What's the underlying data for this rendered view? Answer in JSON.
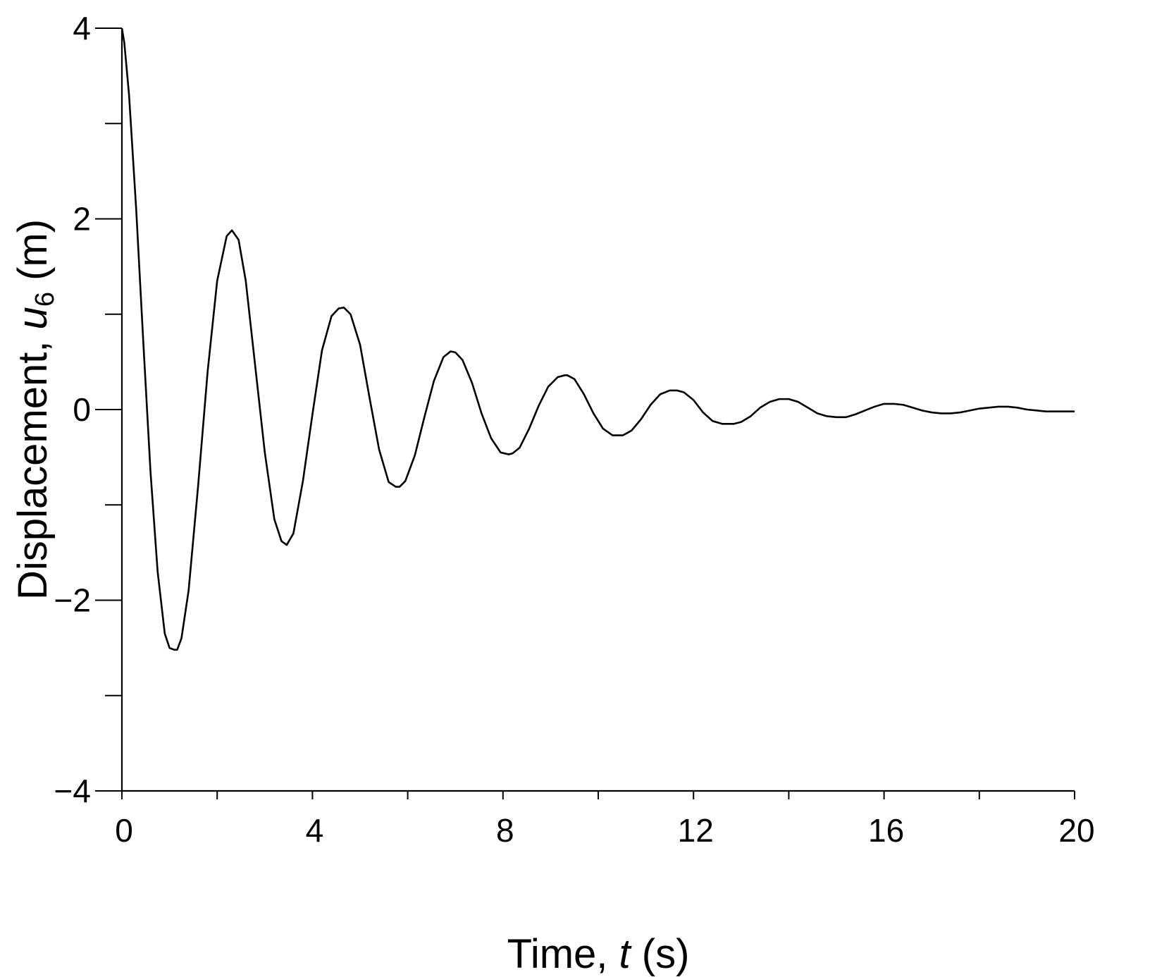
{
  "chart_data": {
    "type": "line",
    "title": "",
    "xlabel": {
      "prefix": "Time, ",
      "var": "t",
      "suffix": " (s)"
    },
    "ylabel": {
      "prefix": "Displacement, ",
      "var": "u",
      "sub": "6",
      "suffix": " (m)"
    },
    "xlim": [
      0,
      20
    ],
    "ylim": [
      -4,
      4
    ],
    "xticks": [
      0,
      4,
      8,
      12,
      16,
      20
    ],
    "xticks_minor": [
      2,
      6,
      10,
      14,
      18
    ],
    "x_tick_labels": [
      "0",
      "4",
      "8",
      "12",
      "16",
      "20"
    ],
    "yticks": [
      -4,
      -2,
      0,
      2,
      4
    ],
    "yticks_minor": [
      -3,
      -1,
      1,
      3
    ],
    "y_tick_labels": [
      "−4",
      "−2",
      "0",
      "2",
      "4"
    ],
    "grid": false,
    "series": [
      {
        "color": "#000000",
        "x": [
          0,
          0.05,
          0.15,
          0.3,
          0.45,
          0.6,
          0.75,
          0.9,
          1.0,
          1.1,
          1.16,
          1.25,
          1.4,
          1.6,
          1.8,
          2.0,
          2.2,
          2.31,
          2.45,
          2.6,
          2.8,
          3.0,
          3.2,
          3.35,
          3.46,
          3.6,
          3.8,
          4.0,
          4.2,
          4.4,
          4.55,
          4.66,
          4.8,
          5.0,
          5.2,
          5.4,
          5.6,
          5.75,
          5.83,
          5.95,
          6.15,
          6.35,
          6.55,
          6.75,
          6.9,
          7.0,
          7.15,
          7.35,
          7.55,
          7.75,
          7.95,
          8.12,
          8.2,
          8.35,
          8.55,
          8.75,
          8.95,
          9.15,
          9.3,
          9.35,
          9.5,
          9.7,
          9.9,
          10.1,
          10.3,
          10.45,
          10.52,
          10.7,
          10.9,
          11.1,
          11.3,
          11.5,
          11.66,
          11.8,
          12.0,
          12.2,
          12.4,
          12.6,
          12.75,
          12.85,
          13.0,
          13.2,
          13.4,
          13.6,
          13.8,
          14.0,
          14.2,
          14.4,
          14.6,
          14.8,
          15.0,
          15.2,
          15.4,
          15.6,
          15.8,
          16.0,
          16.2,
          16.4,
          16.6,
          16.8,
          17.0,
          17.2,
          17.4,
          17.6,
          17.8,
          18.0,
          18.2,
          18.4,
          18.6,
          18.8,
          19.0,
          19.2,
          19.4,
          19.6,
          19.8,
          20.0
        ],
        "values": [
          4.0,
          3.85,
          3.3,
          2.1,
          0.7,
          -0.65,
          -1.7,
          -2.35,
          -2.5,
          -2.52,
          -2.52,
          -2.4,
          -1.9,
          -0.8,
          0.4,
          1.35,
          1.82,
          1.88,
          1.78,
          1.35,
          0.45,
          -0.45,
          -1.15,
          -1.38,
          -1.42,
          -1.3,
          -0.75,
          -0.05,
          0.62,
          0.98,
          1.06,
          1.07,
          1.0,
          0.68,
          0.12,
          -0.42,
          -0.76,
          -0.81,
          -0.81,
          -0.75,
          -0.48,
          -0.08,
          0.3,
          0.55,
          0.61,
          0.6,
          0.52,
          0.28,
          -0.04,
          -0.3,
          -0.45,
          -0.47,
          -0.46,
          -0.4,
          -0.2,
          0.04,
          0.24,
          0.34,
          0.36,
          0.36,
          0.32,
          0.16,
          -0.04,
          -0.2,
          -0.27,
          -0.27,
          -0.27,
          -0.22,
          -0.1,
          0.05,
          0.16,
          0.2,
          0.2,
          0.18,
          0.1,
          -0.03,
          -0.12,
          -0.15,
          -0.15,
          -0.15,
          -0.13,
          -0.07,
          0.02,
          0.08,
          0.11,
          0.11,
          0.08,
          0.02,
          -0.04,
          -0.07,
          -0.08,
          -0.08,
          -0.05,
          -0.01,
          0.03,
          0.06,
          0.06,
          0.05,
          0.02,
          -0.01,
          -0.03,
          -0.04,
          -0.04,
          -0.03,
          -0.01,
          0.01,
          0.02,
          0.03,
          0.03,
          0.02,
          0.0,
          -0.01,
          -0.02,
          -0.02,
          -0.02,
          -0.02
        ]
      }
    ]
  }
}
